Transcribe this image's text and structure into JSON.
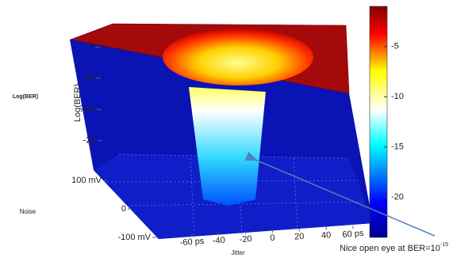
{
  "chart_data": {
    "type": "surface3d",
    "zlabel": "Log(BER)",
    "side_label": "Log(BER)",
    "ylabel": "Noise",
    "xlabel": "Jitter",
    "zlim": [
      -25,
      0
    ],
    "zticks": [
      -5,
      -10,
      -15,
      -20
    ],
    "ylim": [
      -100,
      100
    ],
    "yticks": [
      {
        "value": 100,
        "label": "100 mV"
      },
      0,
      {
        "value": -100,
        "label": "-100 mV"
      }
    ],
    "xlim": [
      -60,
      60
    ],
    "xticks": [
      {
        "value": -60,
        "label": "-60 ps"
      },
      -40,
      -20,
      0,
      20,
      40,
      {
        "value": 60,
        "label": "60 ps"
      }
    ],
    "clim": [
      -24,
      -1
    ],
    "cticks": [
      -5,
      -10,
      -15,
      -20
    ],
    "annotation": {
      "text": "Nice open eye at BER=10",
      "superscript": "-15"
    }
  }
}
